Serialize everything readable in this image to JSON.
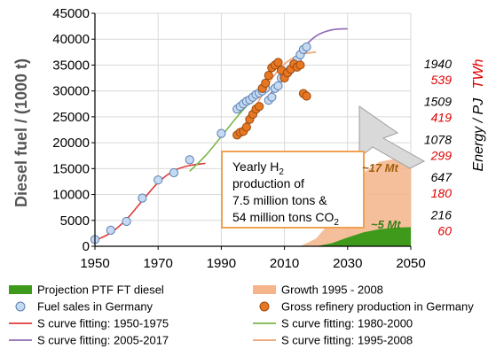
{
  "chart_data": {
    "type": "line",
    "ylabel": "Diesel fuel / (1000 t)",
    "y2label": "Energy / PJ",
    "y2label_unit": "TWh",
    "xlim": [
      1950,
      2050
    ],
    "ylim": [
      0,
      45000
    ],
    "x_ticks": [
      1950,
      1970,
      1990,
      2010,
      2030,
      2050
    ],
    "y_ticks": [
      0,
      5000,
      10000,
      15000,
      20000,
      25000,
      30000,
      35000,
      40000,
      45000
    ],
    "right_ticks": [
      {
        "y": 3650,
        "pj": "216",
        "twh": "60"
      },
      {
        "y": 10950,
        "pj": "647",
        "twh": "180"
      },
      {
        "y": 18250,
        "pj": "1078",
        "twh": "299"
      },
      {
        "y": 25550,
        "pj": "1509",
        "twh": "419"
      },
      {
        "y": 32850,
        "pj": "1940",
        "twh": "539"
      }
    ],
    "grid": true,
    "legend_placement": "bottom",
    "callout": {
      "line1": "Yearly H",
      "line1_sub": "2",
      "line2": "production of",
      "line3": "7.5 million tons &",
      "line4": "54 million tons CO",
      "line4_sub": "2"
    },
    "annotations": [
      {
        "text": "~17 Mt",
        "color": "#a0600a"
      },
      {
        "text": "~5 Mt",
        "color": "#3a7d1a"
      }
    ],
    "series": [
      {
        "name": "Projection PTF FT diesel",
        "type": "area",
        "color": "#3f9a1c",
        "x": [
          2020,
          2025,
          2030,
          2035,
          2040,
          2045,
          2050
        ],
        "y": [
          0,
          600,
          1700,
          2700,
          3300,
          3600,
          3700
        ]
      },
      {
        "name": "Growth 1995 - 2008",
        "type": "area",
        "color": "#f5b48a",
        "x": [
          2015,
          2020,
          2025,
          2030,
          2035,
          2040,
          2045,
          2050
        ],
        "y": [
          0,
          1500,
          5000,
          10000,
          14200,
          16300,
          16900,
          17000
        ]
      },
      {
        "name": "Fuel sales in Germany",
        "type": "scatter",
        "color": "#c5d9f1",
        "stroke": "#5a7fb0",
        "x": [
          1950,
          1955,
          1960,
          1965,
          1970,
          1975,
          1980,
          1990,
          1995,
          1996,
          1997,
          1998,
          1999,
          2000,
          2001,
          2002,
          2003,
          2004,
          2005,
          2006,
          2007,
          2008,
          2009,
          2010,
          2011,
          2012,
          2013,
          2014,
          2015,
          2016,
          2017
        ],
        "y": [
          1300,
          3100,
          4800,
          9300,
          12800,
          14200,
          16700,
          21800,
          26500,
          27000,
          27500,
          28000,
          28300,
          28800,
          29300,
          29600,
          30000,
          30500,
          28200,
          28800,
          30500,
          31000,
          32500,
          33000,
          33700,
          34200,
          35100,
          36000,
          37000,
          38000,
          38500
        ]
      },
      {
        "name": "Gross refinery production in Germany",
        "type": "scatter",
        "color": "#e87722",
        "stroke": "#9a4a10",
        "x": [
          1995,
          1996,
          1997,
          1998,
          1999,
          2000,
          2001,
          2002,
          2003,
          2004,
          2005,
          2006,
          2007,
          2008,
          2009,
          2010,
          2011,
          2012,
          2013,
          2014,
          2015,
          2016,
          2017
        ],
        "y": [
          21500,
          22000,
          22200,
          23000,
          24500,
          25500,
          26500,
          27000,
          30500,
          31500,
          33000,
          34500,
          35000,
          35500,
          34000,
          32500,
          33500,
          34200,
          35200,
          34600,
          35000,
          29500,
          29000
        ]
      },
      {
        "name": "S curve fitting: 1950-1975",
        "type": "line",
        "color": "#e03c3c",
        "x": [
          1950,
          1955,
          1960,
          1965,
          1970,
          1975,
          1980,
          1985
        ],
        "y": [
          1100,
          2600,
          5200,
          8800,
          12300,
          14600,
          15600,
          16000
        ]
      },
      {
        "name": "S curve fitting: 1980-2000",
        "type": "line",
        "color": "#7ab648",
        "x": [
          1980,
          1985,
          1990,
          1995,
          2000
        ],
        "y": [
          14500,
          17500,
          21200,
          25000,
          28500
        ]
      },
      {
        "name": "S curve fitting: 2005-2017",
        "type": "line",
        "color": "#8e6bb5",
        "x": [
          2005,
          2010,
          2015,
          2020,
          2025,
          2030
        ],
        "y": [
          29000,
          33000,
          37600,
          40600,
          41800,
          42000
        ]
      },
      {
        "name": "S curve fitting: 1995-2008",
        "type": "line",
        "color": "#f0a070",
        "x": [
          1995,
          2000,
          2005,
          2010,
          2015,
          2020
        ],
        "y": [
          21500,
          26000,
          31500,
          35200,
          37000,
          37500
        ]
      }
    ]
  }
}
